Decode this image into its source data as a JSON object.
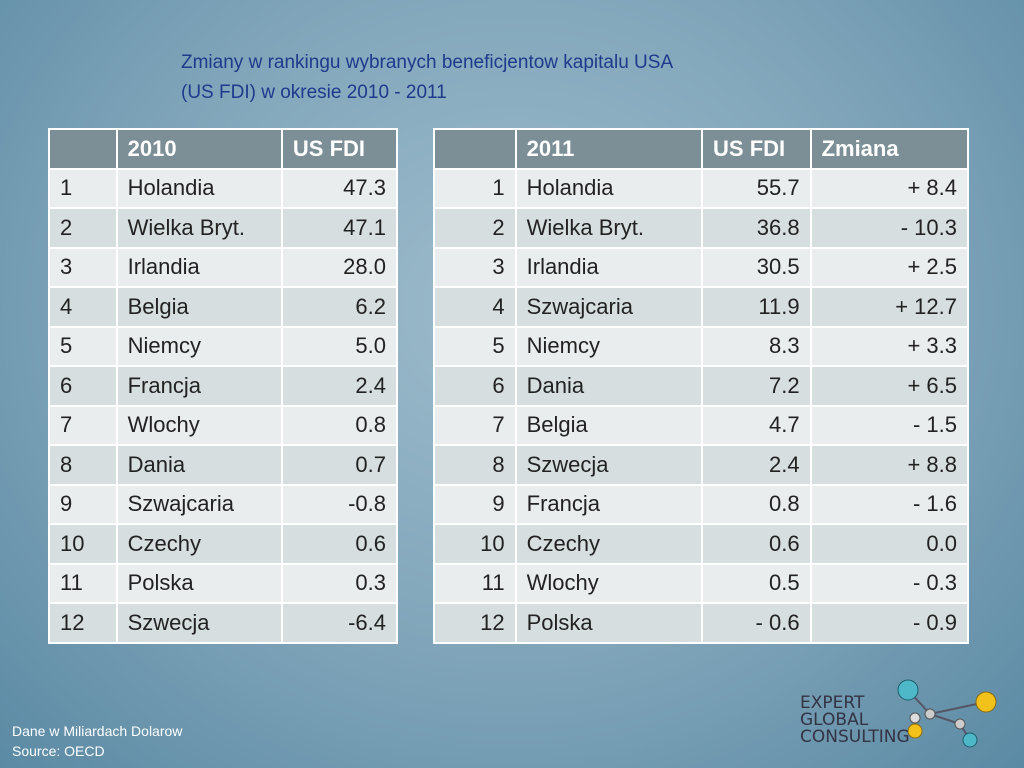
{
  "title": {
    "line1": "Zmiany w rankingu wybranych beneficjentow kapitalu USA",
    "line2": "(US FDI) w okresie 2010 - 2011"
  },
  "table_2010": {
    "header": [
      "2010",
      "US FDI"
    ],
    "rows": [
      [
        "1",
        "Holandia",
        "47.3"
      ],
      [
        "2",
        "Wielka Bryt.",
        "47.1"
      ],
      [
        "3",
        "Irlandia",
        "28.0"
      ],
      [
        "4",
        "Belgia",
        "6.2"
      ],
      [
        "5",
        "Niemcy",
        "5.0"
      ],
      [
        "6",
        "Francja",
        "2.4"
      ],
      [
        "7",
        "Wlochy",
        "0.8"
      ],
      [
        "8",
        "Dania",
        "0.7"
      ],
      [
        "9",
        "Szwajcaria",
        "-0.8"
      ],
      [
        "10",
        "Czechy",
        "0.6"
      ],
      [
        "11",
        "Polska",
        "0.3"
      ],
      [
        "12",
        "Szwecja",
        "-6.4"
      ]
    ]
  },
  "table_2011": {
    "header": [
      "2011",
      "US FDI",
      "Zmiana"
    ],
    "rows": [
      [
        "1",
        "Holandia",
        "55.7",
        "+ 8.4"
      ],
      [
        "2",
        "Wielka Bryt.",
        "36.8",
        "- 10.3"
      ],
      [
        "3",
        "Irlandia",
        "30.5",
        "+ 2.5"
      ],
      [
        "4",
        "Szwajcaria",
        "11.9",
        "+ 12.7"
      ],
      [
        "5",
        "Niemcy",
        "8.3",
        "+ 3.3"
      ],
      [
        "6",
        "Dania",
        "7.2",
        "+ 6.5"
      ],
      [
        "7",
        "Belgia",
        "4.7",
        "- 1.5"
      ],
      [
        "8",
        "Szwecja",
        "2.4",
        "+ 8.8"
      ],
      [
        "9",
        "Francja",
        "0.8",
        "- 1.6"
      ],
      [
        "10",
        "Czechy",
        "0.6",
        "0.0"
      ],
      [
        "11",
        "Wlochy",
        "0.5",
        "- 0.3"
      ],
      [
        "12",
        "Polska",
        "- 0.6",
        "- 0.9"
      ]
    ]
  },
  "footer": {
    "note": "Dane w Miliardach Dolarow",
    "source": "Source:  OECD"
  },
  "logo": {
    "line1": "EXPERT",
    "line2": "GLOBAL",
    "line3": "CONSULTING"
  }
}
